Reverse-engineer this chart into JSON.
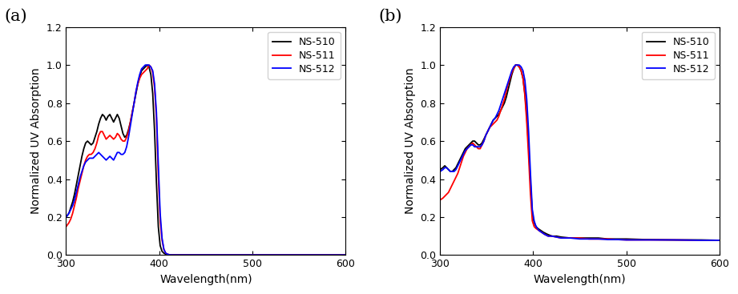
{
  "title_a": "(a)",
  "title_b": "(b)",
  "xlabel": "Wavelength(nm)",
  "ylabel": "Normalized UV Absorption",
  "xlim": [
    300,
    600
  ],
  "ylim_a": [
    0.0,
    1.2
  ],
  "ylim_b": [
    0.0,
    1.2
  ],
  "yticks": [
    0.0,
    0.2,
    0.4,
    0.6,
    0.8,
    1.0,
    1.2
  ],
  "xticks": [
    300,
    400,
    500,
    600
  ],
  "legend_labels": [
    "NS-510",
    "NS-511",
    "NS-512"
  ],
  "colors": [
    "black",
    "red",
    "blue"
  ],
  "linewidth": 1.3,
  "panel_a": {
    "NS510_x": [
      300,
      303,
      305,
      307,
      309,
      311,
      313,
      315,
      317,
      319,
      321,
      323,
      325,
      327,
      329,
      331,
      333,
      335,
      337,
      339,
      341,
      343,
      345,
      347,
      349,
      351,
      353,
      355,
      357,
      359,
      361,
      363,
      365,
      367,
      369,
      371,
      373,
      375,
      377,
      379,
      381,
      383,
      385,
      387,
      389,
      391,
      393,
      395,
      397,
      399,
      401,
      403,
      405,
      407,
      409,
      411,
      413,
      415,
      417,
      419,
      421,
      423,
      425,
      430,
      440,
      450,
      500,
      600
    ],
    "NS510_y": [
      0.2,
      0.22,
      0.25,
      0.28,
      0.32,
      0.37,
      0.42,
      0.47,
      0.52,
      0.56,
      0.59,
      0.6,
      0.59,
      0.58,
      0.59,
      0.62,
      0.65,
      0.69,
      0.72,
      0.74,
      0.73,
      0.71,
      0.73,
      0.74,
      0.72,
      0.7,
      0.72,
      0.74,
      0.72,
      0.68,
      0.64,
      0.62,
      0.63,
      0.66,
      0.7,
      0.75,
      0.8,
      0.85,
      0.9,
      0.94,
      0.97,
      0.98,
      0.99,
      1.0,
      0.99,
      0.95,
      0.85,
      0.65,
      0.38,
      0.15,
      0.05,
      0.02,
      0.01,
      0.005,
      0.002,
      0.001,
      0.001,
      0.001,
      0.001,
      0.001,
      0.001,
      0.001,
      0.001,
      0.001,
      0.001,
      0.001,
      0.001,
      0.001
    ],
    "NS511_x": [
      300,
      303,
      305,
      307,
      309,
      311,
      313,
      315,
      317,
      319,
      321,
      323,
      325,
      327,
      329,
      331,
      333,
      335,
      337,
      339,
      341,
      343,
      345,
      347,
      349,
      351,
      353,
      355,
      357,
      359,
      361,
      363,
      365,
      367,
      369,
      371,
      373,
      375,
      377,
      379,
      381,
      383,
      385,
      387,
      389,
      391,
      393,
      395,
      397,
      399,
      401,
      403,
      405,
      407,
      409,
      411,
      413,
      415,
      417,
      419,
      421,
      423,
      425,
      430,
      440,
      450,
      500,
      600
    ],
    "NS511_y": [
      0.15,
      0.17,
      0.19,
      0.22,
      0.26,
      0.3,
      0.35,
      0.39,
      0.43,
      0.47,
      0.5,
      0.52,
      0.53,
      0.53,
      0.54,
      0.56,
      0.59,
      0.63,
      0.65,
      0.65,
      0.63,
      0.61,
      0.62,
      0.63,
      0.62,
      0.61,
      0.62,
      0.64,
      0.63,
      0.61,
      0.6,
      0.6,
      0.62,
      0.65,
      0.7,
      0.75,
      0.8,
      0.86,
      0.9,
      0.93,
      0.95,
      0.96,
      0.97,
      0.98,
      1.0,
      0.99,
      0.96,
      0.88,
      0.72,
      0.42,
      0.18,
      0.08,
      0.03,
      0.01,
      0.005,
      0.002,
      0.001,
      0.001,
      0.001,
      0.001,
      0.001,
      0.001,
      0.001,
      0.001,
      0.001,
      0.001,
      0.001,
      0.001
    ],
    "NS512_x": [
      300,
      303,
      305,
      307,
      309,
      311,
      313,
      315,
      317,
      319,
      321,
      323,
      325,
      327,
      329,
      331,
      333,
      335,
      337,
      339,
      341,
      343,
      345,
      347,
      349,
      351,
      353,
      355,
      357,
      359,
      361,
      363,
      365,
      367,
      369,
      371,
      373,
      375,
      377,
      379,
      381,
      383,
      385,
      387,
      389,
      391,
      393,
      395,
      397,
      399,
      401,
      403,
      405,
      407,
      409,
      411,
      413,
      415,
      417,
      419,
      421,
      423,
      425,
      430,
      440,
      450,
      500,
      600
    ],
    "NS512_y": [
      0.2,
      0.22,
      0.24,
      0.26,
      0.29,
      0.33,
      0.37,
      0.41,
      0.44,
      0.47,
      0.49,
      0.5,
      0.51,
      0.51,
      0.51,
      0.52,
      0.53,
      0.54,
      0.53,
      0.52,
      0.51,
      0.5,
      0.51,
      0.52,
      0.51,
      0.5,
      0.52,
      0.54,
      0.54,
      0.53,
      0.53,
      0.54,
      0.57,
      0.62,
      0.68,
      0.74,
      0.8,
      0.86,
      0.91,
      0.95,
      0.98,
      0.99,
      1.0,
      1.0,
      1.0,
      0.99,
      0.97,
      0.9,
      0.75,
      0.48,
      0.22,
      0.09,
      0.03,
      0.01,
      0.005,
      0.002,
      0.001,
      0.001,
      0.001,
      0.001,
      0.001,
      0.001,
      0.001,
      0.001,
      0.001,
      0.001,
      0.001,
      0.001
    ]
  },
  "panel_b": {
    "NS510_x": [
      300,
      303,
      305,
      307,
      309,
      311,
      313,
      315,
      317,
      319,
      321,
      323,
      325,
      327,
      329,
      331,
      333,
      335,
      337,
      339,
      341,
      343,
      345,
      347,
      349,
      351,
      353,
      355,
      357,
      359,
      361,
      363,
      365,
      367,
      369,
      371,
      373,
      375,
      377,
      379,
      381,
      383,
      385,
      387,
      389,
      391,
      393,
      395,
      397,
      399,
      401,
      403,
      405,
      408,
      411,
      415,
      420,
      425,
      430,
      440,
      450,
      460,
      470,
      480,
      490,
      500,
      520,
      550,
      580,
      600
    ],
    "NS510_y": [
      0.45,
      0.46,
      0.47,
      0.46,
      0.45,
      0.44,
      0.44,
      0.45,
      0.46,
      0.48,
      0.5,
      0.52,
      0.54,
      0.56,
      0.57,
      0.58,
      0.59,
      0.6,
      0.6,
      0.59,
      0.58,
      0.58,
      0.59,
      0.61,
      0.63,
      0.65,
      0.67,
      0.69,
      0.71,
      0.72,
      0.73,
      0.74,
      0.76,
      0.78,
      0.8,
      0.83,
      0.87,
      0.91,
      0.95,
      0.98,
      1.0,
      1.0,
      0.99,
      0.97,
      0.93,
      0.85,
      0.73,
      0.57,
      0.38,
      0.22,
      0.17,
      0.15,
      0.14,
      0.13,
      0.12,
      0.11,
      0.1,
      0.1,
      0.095,
      0.09,
      0.09,
      0.09,
      0.09,
      0.085,
      0.085,
      0.085,
      0.082,
      0.08,
      0.08,
      0.078
    ],
    "NS511_x": [
      300,
      303,
      305,
      307,
      309,
      311,
      313,
      315,
      317,
      319,
      321,
      323,
      325,
      327,
      329,
      331,
      333,
      335,
      337,
      339,
      341,
      343,
      345,
      347,
      349,
      351,
      353,
      355,
      357,
      359,
      361,
      363,
      365,
      367,
      369,
      371,
      373,
      375,
      377,
      379,
      381,
      383,
      385,
      387,
      389,
      391,
      393,
      395,
      397,
      399,
      401,
      403,
      406,
      409,
      412,
      416,
      420,
      425,
      430,
      440,
      450,
      460,
      470,
      480,
      490,
      500,
      520,
      550,
      580,
      600
    ],
    "NS511_y": [
      0.29,
      0.3,
      0.31,
      0.32,
      0.33,
      0.35,
      0.37,
      0.39,
      0.41,
      0.43,
      0.46,
      0.49,
      0.52,
      0.54,
      0.56,
      0.57,
      0.58,
      0.59,
      0.58,
      0.57,
      0.56,
      0.56,
      0.58,
      0.6,
      0.63,
      0.65,
      0.67,
      0.68,
      0.69,
      0.7,
      0.71,
      0.73,
      0.76,
      0.79,
      0.82,
      0.86,
      0.9,
      0.93,
      0.96,
      0.98,
      1.0,
      1.0,
      0.99,
      0.97,
      0.93,
      0.84,
      0.7,
      0.52,
      0.32,
      0.18,
      0.15,
      0.14,
      0.13,
      0.12,
      0.11,
      0.1,
      0.1,
      0.095,
      0.09,
      0.09,
      0.09,
      0.085,
      0.085,
      0.085,
      0.082,
      0.08,
      0.08,
      0.08,
      0.078,
      0.078
    ],
    "NS512_x": [
      300,
      303,
      305,
      307,
      309,
      311,
      313,
      315,
      317,
      319,
      321,
      323,
      325,
      327,
      329,
      331,
      333,
      335,
      337,
      339,
      341,
      343,
      345,
      347,
      349,
      351,
      353,
      355,
      357,
      359,
      361,
      363,
      365,
      367,
      369,
      371,
      373,
      375,
      377,
      379,
      381,
      383,
      385,
      387,
      389,
      391,
      393,
      395,
      397,
      399,
      401,
      403,
      406,
      409,
      412,
      416,
      420,
      425,
      430,
      440,
      450,
      460,
      470,
      480,
      490,
      500,
      520,
      550,
      580,
      600
    ],
    "NS512_y": [
      0.44,
      0.45,
      0.46,
      0.46,
      0.45,
      0.44,
      0.44,
      0.44,
      0.45,
      0.47,
      0.49,
      0.51,
      0.53,
      0.55,
      0.56,
      0.57,
      0.58,
      0.58,
      0.57,
      0.57,
      0.57,
      0.57,
      0.58,
      0.6,
      0.63,
      0.65,
      0.67,
      0.69,
      0.71,
      0.72,
      0.74,
      0.76,
      0.79,
      0.82,
      0.85,
      0.88,
      0.91,
      0.94,
      0.97,
      0.99,
      1.0,
      1.0,
      1.0,
      0.99,
      0.97,
      0.92,
      0.82,
      0.65,
      0.43,
      0.24,
      0.18,
      0.15,
      0.13,
      0.12,
      0.11,
      0.1,
      0.1,
      0.095,
      0.09,
      0.09,
      0.085,
      0.085,
      0.085,
      0.082,
      0.082,
      0.08,
      0.08,
      0.08,
      0.078,
      0.078
    ]
  }
}
